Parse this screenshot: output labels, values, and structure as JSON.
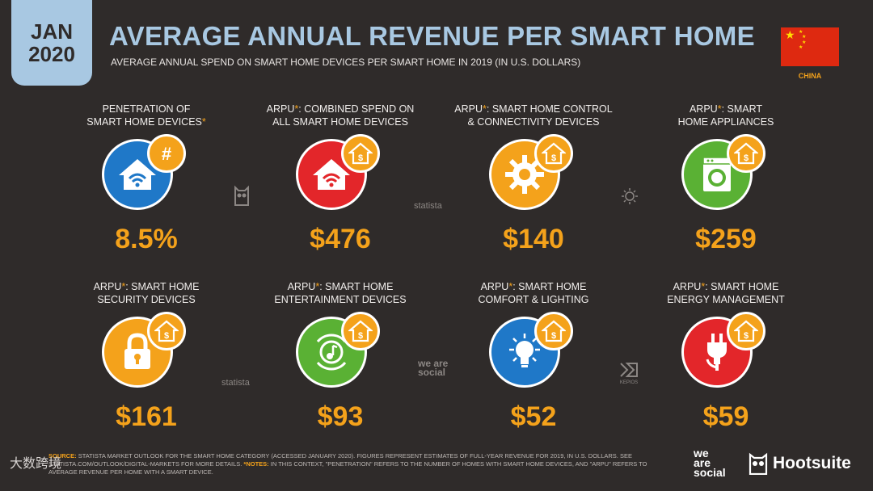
{
  "header": {
    "month": "JAN",
    "year": "2020",
    "title": "AVERAGE ANNUAL REVENUE PER SMART HOME",
    "subtitle": "AVERAGE ANNUAL SPEND ON SMART HOME DEVICES PER SMART HOME IN 2019 (IN U.S. DOLLARS)",
    "country": "CHINA"
  },
  "colors": {
    "blue": "#1f78c8",
    "red": "#e3262a",
    "orange": "#f4a21b",
    "green": "#5ab134",
    "accent": "#a8c8e2"
  },
  "cards": [
    {
      "line1": "PENETRATION OF",
      "line2": "SMART HOME DEVICES",
      "prefix": "",
      "suffix": "*",
      "value": "8.5%",
      "icon": "wifi-home-icon",
      "badge": "hash-icon"
    },
    {
      "line1": "COMBINED SPEND ON",
      "line2": "ALL SMART HOME DEVICES",
      "prefix": "ARPU",
      "suffix": "*",
      "value": "$476",
      "icon": "wifi-home-icon",
      "badge": "dollar-home-icon"
    },
    {
      "line1": "SMART HOME CONTROL",
      "line2": "& CONNECTIVITY DEVICES",
      "prefix": "ARPU",
      "suffix": "*",
      "value": "$140",
      "icon": "gear-icon",
      "badge": "dollar-home-icon"
    },
    {
      "line1": "SMART",
      "line2": "HOME APPLIANCES",
      "prefix": "ARPU",
      "suffix": "*",
      "value": "$259",
      "icon": "washing-machine-icon",
      "badge": "dollar-home-icon"
    },
    {
      "line1": "SMART HOME",
      "line2": "SECURITY DEVICES",
      "prefix": "ARPU",
      "suffix": "*",
      "value": "$161",
      "icon": "lock-icon",
      "badge": "dollar-home-icon"
    },
    {
      "line1": "SMART HOME",
      "line2": "ENTERTAINMENT DEVICES",
      "prefix": "ARPU",
      "suffix": "*",
      "value": "$93",
      "icon": "music-speaker-icon",
      "badge": "dollar-home-icon"
    },
    {
      "line1": "SMART HOME",
      "line2": "COMFORT & LIGHTING",
      "prefix": "ARPU",
      "suffix": "*",
      "value": "$52",
      "icon": "light-bulb-icon",
      "badge": "dollar-home-icon"
    },
    {
      "line1": "SMART HOME",
      "line2": "ENERGY MANAGEMENT",
      "prefix": "ARPU",
      "suffix": "*",
      "value": "$59",
      "icon": "power-plug-icon",
      "badge": "dollar-home-icon"
    }
  ],
  "watermarks": {
    "statista": "statista",
    "weare": "we are social",
    "kepios": "KEPIOS"
  },
  "footer": {
    "source_label": "SOURCE:",
    "source_text": "STATISTA MARKET OUTLOOK FOR THE SMART HOME CATEGORY (ACCESSED JANUARY 2020). FIGURES REPRESENT ESTIMATES OF FULL-YEAR REVENUE FOR 2019, IN U.S. DOLLARS. SEE STATISTA.COM/OUTLOOK/DIGITAL-MARKETS FOR MORE DETAILS.",
    "notes_label": "*NOTES:",
    "notes_text": "IN THIS CONTEXT, \"PENETRATION\" REFERS TO THE NUMBER OF HOMES WITH SMART HOME DEVICES, AND \"ARPU\" REFERS TO AVERAGE REVENUE PER HOME WITH A SMART DEVICE.",
    "we": "we",
    "are": "are",
    "social": "social",
    "hootsuite": "Hootsuite",
    "corner": "大数跨境"
  }
}
